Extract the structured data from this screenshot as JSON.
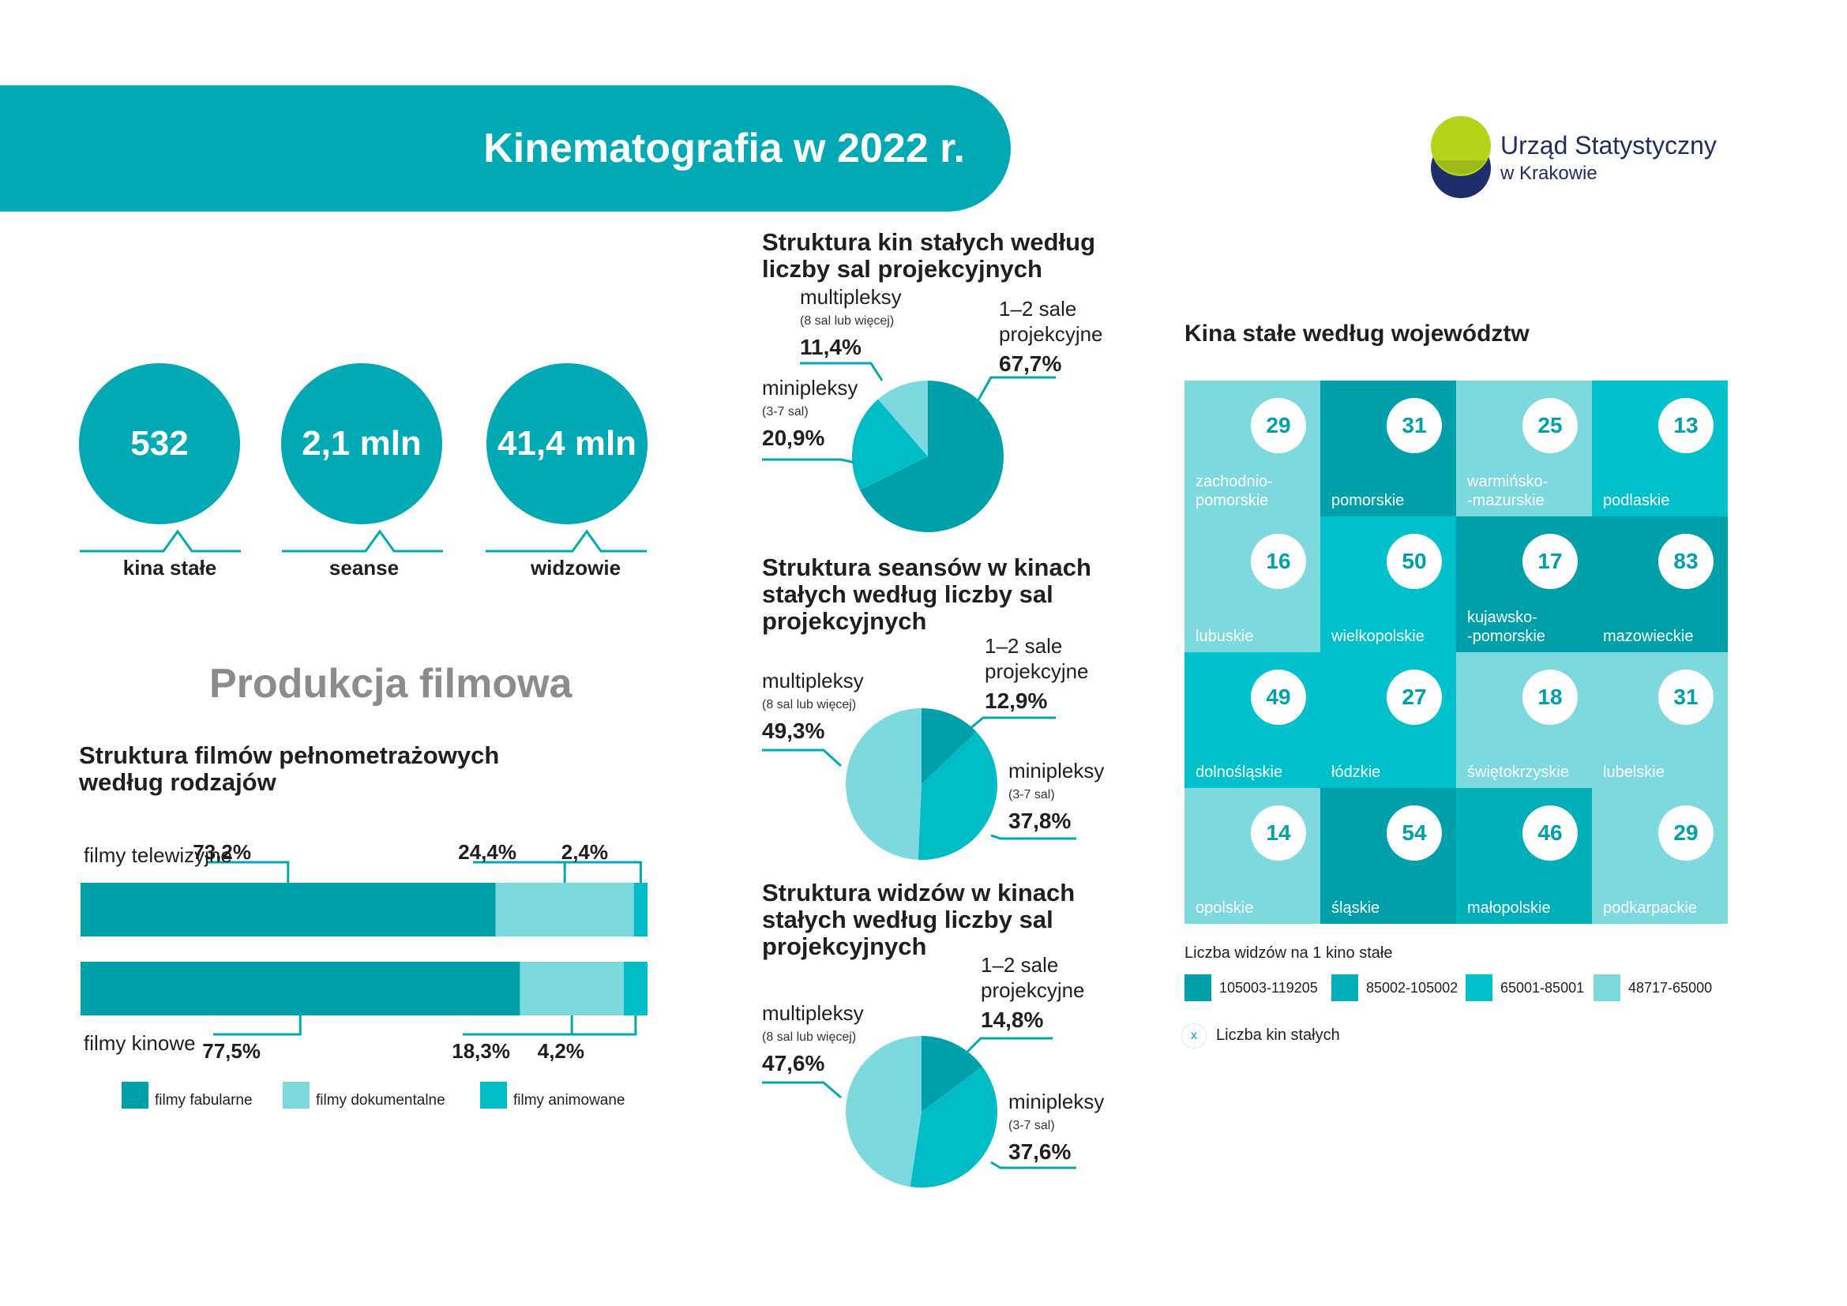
{
  "header": {
    "title": "Kinematografia w 2022 r.",
    "logo": {
      "line1": "Urząd Statystyczny",
      "line2": "w Krakowie"
    }
  },
  "kpis": [
    {
      "value": "532",
      "label": "kina stałe"
    },
    {
      "value": "2,1 mln",
      "label": "seanse"
    },
    {
      "value": "41,4 mln",
      "label": "widzowie"
    }
  ],
  "production": {
    "heading": "Produkcja filmowa"
  },
  "colors": {
    "dark": "#00a0aa",
    "mid": "#00bcc7",
    "light": "#7ed9df",
    "accent_teal": "#00a9b4"
  },
  "chart_data": [
    {
      "type": "bar",
      "orientation": "horizontal-stacked",
      "title": "Struktura filmów pełnometrażowych według rodzajów",
      "categories": [
        "filmy telewizyjne",
        "filmy kinowe"
      ],
      "series": [
        {
          "name": "filmy fabularne",
          "values": [
            73.2,
            77.5
          ],
          "labels": [
            "73,2%",
            "77,5%"
          ],
          "color": "#00a0aa"
        },
        {
          "name": "filmy dokumentalne",
          "values": [
            24.4,
            18.3
          ],
          "labels": [
            "24,4%",
            "18,3%"
          ],
          "color": "#7ed9df"
        },
        {
          "name": "filmy animowane",
          "values": [
            2.4,
            4.2
          ],
          "labels": [
            "2,4%",
            "4,2%"
          ],
          "color": "#00bcc7"
        }
      ],
      "legend": "bottom"
    },
    {
      "type": "pie",
      "title": "Struktura kin stałych według liczby sal projekcyjnych",
      "slices": [
        {
          "name": "1–2 sale projekcyjne",
          "value": 67.7,
          "label": "67,7%",
          "color": "#00a0aa"
        },
        {
          "name": "minipleksy",
          "note": "(3-7 sal)",
          "value": 20.9,
          "label": "20,9%",
          "color": "#00bcc7"
        },
        {
          "name": "multipleksy",
          "note": "(8 sal lub więcej)",
          "value": 11.4,
          "label": "11,4%",
          "color": "#7ed9df"
        }
      ]
    },
    {
      "type": "pie",
      "title": "Struktura seansów w kinach stałych według liczby sal projekcyjnych",
      "slices": [
        {
          "name": "1–2 sale projekcyjne",
          "value": 12.9,
          "label": "12,9%",
          "color": "#00a0aa"
        },
        {
          "name": "minipleksy",
          "note": "(3-7 sal)",
          "value": 37.8,
          "label": "37,8%",
          "color": "#00bcc7"
        },
        {
          "name": "multipleksy",
          "note": "(8 sal lub więcej)",
          "value": 49.3,
          "label": "49,3%",
          "color": "#7ed9df"
        }
      ]
    },
    {
      "type": "pie",
      "title": "Struktura widzów w kinach stałych według liczby sal projekcyjnych",
      "slices": [
        {
          "name": "1–2 sale projekcyjne",
          "value": 14.8,
          "label": "14,8%",
          "color": "#00a0aa"
        },
        {
          "name": "minipleksy",
          "note": "(3-7 sal)",
          "value": 37.6,
          "label": "37,6%",
          "color": "#00bcc7"
        },
        {
          "name": "multipleksy",
          "note": "(8 sal lub więcej)",
          "value": 47.6,
          "label": "47,6%",
          "color": "#7ed9df"
        }
      ]
    },
    {
      "type": "heatmap",
      "title": "Kina stałe według województw",
      "legend_title": "Liczba widzów na 1 kino stałe",
      "count_legend_symbol": "x",
      "count_legend_label": "Liczba kin stałych",
      "classes": [
        {
          "range": "105003-119205",
          "color": "#00a0aa"
        },
        {
          "range": "85002-105002",
          "color": "#00afb9"
        },
        {
          "range": "65001-85001",
          "color": "#00c1cb"
        },
        {
          "range": "48717-65000",
          "color": "#7ed9df"
        }
      ],
      "tiles": [
        {
          "name": "zachodnio-\npomorskie",
          "cinemas": 29,
          "class": 3
        },
        {
          "name": "pomorskie",
          "cinemas": 31,
          "class": 0
        },
        {
          "name": "warmińsko-\n-mazurskie",
          "cinemas": 25,
          "class": 3
        },
        {
          "name": "podlaskie",
          "cinemas": 13,
          "class": 2
        },
        {
          "name": "lubuskie",
          "cinemas": 16,
          "class": 3
        },
        {
          "name": "wielkopolskie",
          "cinemas": 50,
          "class": 2
        },
        {
          "name": "kujawsko-\n-pomorskie",
          "cinemas": 17,
          "class": 0
        },
        {
          "name": "mazowieckie",
          "cinemas": 83,
          "class": 0
        },
        {
          "name": "dolnośląskie",
          "cinemas": 49,
          "class": 2
        },
        {
          "name": "łódzkie",
          "cinemas": 27,
          "class": 2
        },
        {
          "name": "świętokrzyskie",
          "cinemas": 18,
          "class": 3
        },
        {
          "name": "lubelskie",
          "cinemas": 31,
          "class": 3
        },
        {
          "name": "opolskie",
          "cinemas": 14,
          "class": 3
        },
        {
          "name": "śląskie",
          "cinemas": 54,
          "class": 0
        },
        {
          "name": "małopolskie",
          "cinemas": 46,
          "class": 1
        },
        {
          "name": "podkarpackie",
          "cinemas": 29,
          "class": 3
        }
      ]
    }
  ]
}
